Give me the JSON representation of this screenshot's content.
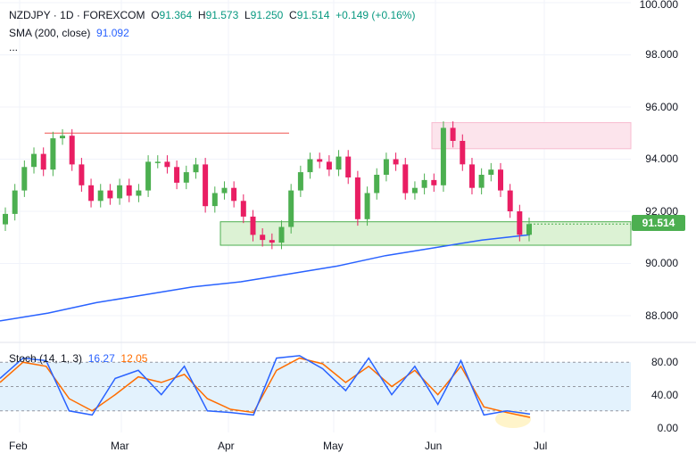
{
  "header": {
    "symbol": "NZDJPY",
    "sep1": "·",
    "interval": "1D",
    "sep2": "·",
    "exchange": "FOREXCOM",
    "open_label": "O",
    "open": "91.364",
    "high_label": "H",
    "high": "91.573",
    "low_label": "L",
    "low": "91.250",
    "close_label": "C",
    "close": "91.514",
    "change": "+0.149 (+0.16%)",
    "sma_label": "SMA (200, close)",
    "sma_value": "91.092",
    "more": "..."
  },
  "price_axis": [
    "100.000",
    "98.000",
    "96.000",
    "94.000",
    "92.000",
    "90.000",
    "88.000"
  ],
  "current_price": "91.514",
  "stoch": {
    "label": "Stoch (14, 1, 3)",
    "k": "16.27",
    "d": "12.05",
    "axis": [
      "80.00",
      "40.00",
      "0.00"
    ]
  },
  "time_axis": [
    "Feb",
    "Mar",
    "Apr",
    "May",
    "Jun",
    "Jul"
  ],
  "colors": {
    "up": "#4caf50",
    "down": "#e91e63",
    "sma": "#2962ff",
    "stoch_k": "#2962ff",
    "stoch_d": "#ff6d00"
  },
  "chart_data": {
    "type": "candlestick",
    "series": [
      {
        "name": "NZDJPY",
        "close": [
          91.9,
          92.8,
          93.7,
          94.2,
          93.6,
          94.8,
          94.9,
          93.8,
          93.0,
          92.4,
          92.8,
          92.5,
          93.0,
          92.6,
          92.8,
          93.9,
          93.9,
          93.7,
          93.1,
          93.5,
          93.8,
          92.2,
          92.7,
          92.9,
          92.4,
          91.8,
          91.1,
          90.9,
          90.8,
          91.4,
          92.8,
          93.5,
          94.0,
          93.9,
          93.6,
          94.1,
          93.3,
          91.7,
          92.7,
          93.4,
          94.0,
          93.8,
          92.7,
          92.9,
          93.2,
          93.0,
          95.2,
          94.7,
          93.8,
          92.9,
          93.4,
          93.6,
          92.8,
          92.0,
          91.1,
          91.51
        ]
      },
      {
        "name": "SMA (200, close)",
        "values": [
          87.8,
          88.1,
          88.5,
          88.8,
          89.1,
          89.3,
          89.6,
          89.9,
          90.3,
          90.6,
          90.9,
          91.1
        ]
      }
    ],
    "stochastic": {
      "k": [
        60,
        85,
        82,
        20,
        15,
        60,
        70,
        40,
        75,
        20,
        18,
        15,
        85,
        88,
        72,
        45,
        85,
        40,
        75,
        28,
        82,
        15,
        20,
        16
      ],
      "d": [
        55,
        80,
        75,
        35,
        20,
        40,
        62,
        55,
        65,
        35,
        22,
        18,
        70,
        85,
        78,
        55,
        75,
        50,
        70,
        40,
        75,
        25,
        18,
        12
      ]
    },
    "xlabel": "",
    "ylabel": "",
    "ylim": [
      87,
      100
    ],
    "zones": [
      {
        "type": "supply",
        "from": 94.4,
        "to": 95.4
      },
      {
        "type": "demand",
        "from": 90.7,
        "to": 91.6
      }
    ],
    "resistance_level": 95.0,
    "grid": true
  }
}
